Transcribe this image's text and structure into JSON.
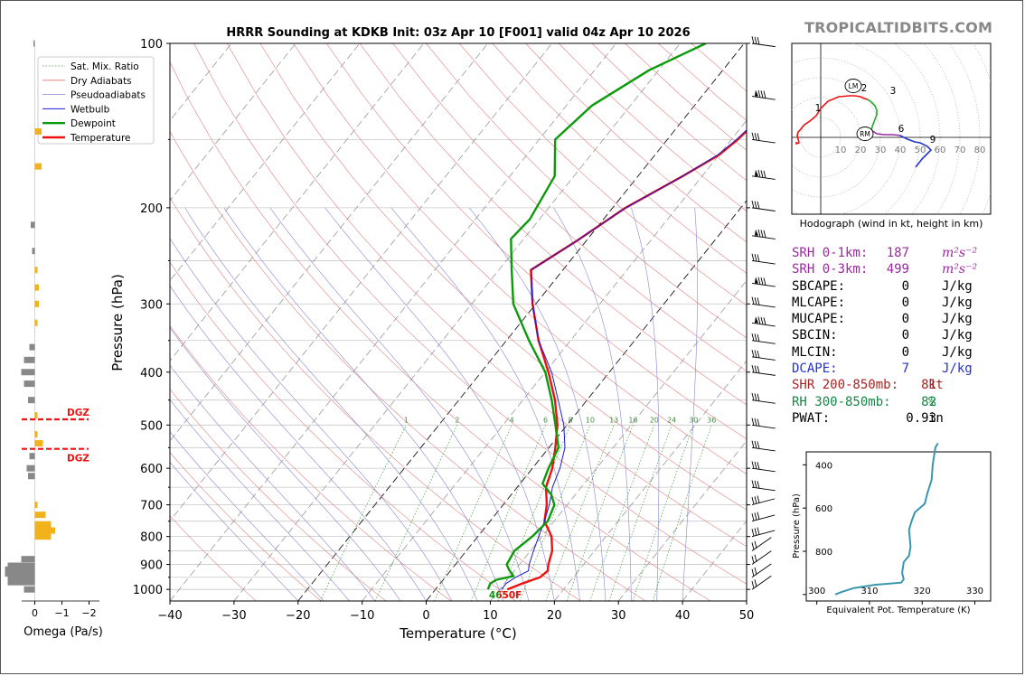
{
  "brand": "TROPICALTIDBITS.COM",
  "chart_data": {
    "type": "line",
    "title": "HRRR Sounding at KDKB Init: 03z Apr 10 [F001] valid 04z Apr 10 2026",
    "xlabel": "Temperature (°C)",
    "ylabel": "Pressure (hPa)",
    "xlim": [
      -40,
      50
    ],
    "ylim": [
      1050,
      100
    ],
    "yscale": "log",
    "x_ticks": [
      "−40",
      "−30",
      "−20",
      "−10",
      "0",
      "10",
      "20",
      "30",
      "40",
      "50"
    ],
    "y_ticks": [
      "100",
      "200",
      "300",
      "400",
      "500",
      "600",
      "700",
      "800",
      "900",
      "1000"
    ],
    "legend": [
      "Sat. Mix. Ratio",
      "Dry Adiabats",
      "Pseudoadiabats",
      "Wetbulb",
      "Dewpoint",
      "Temperature"
    ],
    "legend_colors": [
      "#3b9a3b",
      "#e07070",
      "#8888cc",
      "#1a1ad0",
      "#0a9a0a",
      "#ee1111"
    ],
    "mixing_ratio_labels": [
      "1",
      "2",
      "4",
      "6",
      "8",
      "10",
      "13",
      "16",
      "20",
      "24",
      "30",
      "36"
    ],
    "series": [
      {
        "name": "Temperature",
        "color": "#ee1111",
        "points": [
          [
            11.2,
            1000
          ],
          [
            12.8,
            975
          ],
          [
            14.8,
            950
          ],
          [
            15.2,
            925
          ],
          [
            14.5,
            900
          ],
          [
            13.4,
            850
          ],
          [
            11.5,
            800
          ],
          [
            8.5,
            750
          ],
          [
            6.8,
            700
          ],
          [
            4.5,
            650
          ],
          [
            3.1,
            600
          ],
          [
            1.0,
            550
          ],
          [
            -1.5,
            500
          ],
          [
            -5.0,
            450
          ],
          [
            -9.5,
            400
          ],
          [
            -15.0,
            350
          ],
          [
            -20.5,
            300
          ],
          [
            -25.0,
            260
          ],
          [
            -21.5,
            230
          ],
          [
            -18.0,
            200
          ],
          [
            -13.0,
            175
          ],
          [
            -10.0,
            160
          ],
          [
            -9.0,
            150
          ],
          [
            -8.0,
            135
          ],
          [
            -4.0,
            112
          ],
          [
            0.0,
            100
          ]
        ]
      },
      {
        "name": "Wetbulb",
        "color": "#1a1ad0",
        "points": [
          [
            10.3,
            1000
          ],
          [
            10.3,
            975
          ],
          [
            11.0,
            950
          ],
          [
            12.2,
            925
          ],
          [
            11.5,
            900
          ],
          [
            10.5,
            850
          ],
          [
            9.5,
            800
          ],
          [
            8.5,
            750
          ],
          [
            7.2,
            700
          ],
          [
            5.5,
            650
          ],
          [
            4.3,
            600
          ],
          [
            2.5,
            550
          ],
          [
            -0.5,
            500
          ],
          [
            -4.5,
            450
          ],
          [
            -9.0,
            400
          ],
          [
            -15.0,
            350
          ],
          [
            -20.5,
            300
          ],
          [
            -25.0,
            260
          ],
          [
            -21.5,
            230
          ],
          [
            -18.0,
            200
          ],
          [
            -13.0,
            175
          ],
          [
            -10.2,
            160
          ],
          [
            -9.2,
            150
          ],
          [
            -8.2,
            135
          ],
          [
            -4.2,
            112
          ],
          [
            0.0,
            100
          ]
        ]
      },
      {
        "name": "Dewpoint",
        "color": "#0a9a0a",
        "points": [
          [
            8.2,
            1000
          ],
          [
            7.8,
            975
          ],
          [
            8.3,
            960
          ],
          [
            10.5,
            945
          ],
          [
            9.0,
            920
          ],
          [
            8.0,
            900
          ],
          [
            7.5,
            850
          ],
          [
            8.5,
            800
          ],
          [
            9.0,
            750
          ],
          [
            8.0,
            700
          ],
          [
            6.2,
            670
          ],
          [
            3.5,
            640
          ],
          [
            2.5,
            600
          ],
          [
            1.5,
            550
          ],
          [
            -1.8,
            500
          ],
          [
            -5.5,
            450
          ],
          [
            -10.0,
            400
          ],
          [
            -16.5,
            350
          ],
          [
            -23.5,
            300
          ],
          [
            -28.0,
            260
          ],
          [
            -32.0,
            228
          ],
          [
            -31.5,
            210
          ],
          [
            -33.0,
            175
          ],
          [
            -37.5,
            150
          ],
          [
            -36.0,
            130
          ],
          [
            -31.5,
            112
          ],
          [
            -26.0,
            100
          ]
        ]
      }
    ],
    "annotations": [
      "4650F"
    ],
    "wind_barbs": "right column, 100–1000 hPa"
  },
  "omega": {
    "xlabel": "Omega (Pa/s)",
    "x_ticks": [
      "0",
      "−1",
      "−2"
    ],
    "dgz_label": "DGZ",
    "bars": [
      [
        1000,
        0.08
      ],
      [
        970,
        0.2
      ],
      [
        950,
        0.2
      ],
      [
        935,
        0.22
      ],
      [
        920,
        0.22
      ],
      [
        905,
        0.2
      ],
      [
        880,
        0.1
      ],
      [
        800,
        -0.12
      ],
      [
        780,
        -0.15
      ],
      [
        760,
        -0.12
      ],
      [
        730,
        -0.08
      ],
      [
        700,
        -0.02
      ],
      [
        620,
        0.05
      ],
      [
        600,
        0.06
      ],
      [
        570,
        0.04
      ],
      [
        540,
        -0.06
      ],
      [
        520,
        -0.02
      ],
      [
        480,
        -0.02
      ],
      [
        450,
        0.05
      ],
      [
        420,
        0.08
      ],
      [
        400,
        0.1
      ],
      [
        380,
        0.08
      ],
      [
        360,
        0.04
      ],
      [
        325,
        -0.02
      ],
      [
        300,
        -0.03
      ],
      [
        280,
        -0.03
      ],
      [
        260,
        -0.02
      ],
      [
        240,
        0.02
      ],
      [
        215,
        0.03
      ],
      [
        168,
        -0.05
      ],
      [
        145,
        -0.05
      ],
      [
        100,
        0.01
      ]
    ],
    "dgz_top": 490,
    "dgz_bottom": 555
  },
  "hodograph": {
    "caption": "Hodograph (wind in kt, height in km)",
    "ring_labels": [
      "10",
      "20",
      "30",
      "40",
      "50",
      "60",
      "70",
      "80"
    ],
    "height_labels": [
      "1",
      "2",
      "3",
      "6",
      "9"
    ],
    "markers": [
      "LM",
      "RM"
    ]
  },
  "indices": [
    {
      "label": "SRH 0-1km:",
      "value": "187",
      "unit": "m²s⁻²",
      "color": "#9a2aa0"
    },
    {
      "label": "SRH 0-3km:",
      "value": "499",
      "unit": "m²s⁻²",
      "color": "#9a2aa0"
    },
    {
      "label": "SBCAPE:",
      "value": "0",
      "unit": "J/kg",
      "color": "#000000"
    },
    {
      "label": "MLCAPE:",
      "value": "0",
      "unit": "J/kg",
      "color": "#000000"
    },
    {
      "label": "MUCAPE:",
      "value": "0",
      "unit": "J/kg",
      "color": "#000000"
    },
    {
      "label": "SBCIN:",
      "value": "0",
      "unit": "J/kg",
      "color": "#000000"
    },
    {
      "label": "MLCIN:",
      "value": "0",
      "unit": "J/kg",
      "color": "#000000"
    },
    {
      "label": "DCAPE:",
      "value": "7",
      "unit": "J/kg",
      "color": "#2233cc"
    },
    {
      "label": "SHR 200-850mb:",
      "value": "81",
      "unit": "kt",
      "color": "#aa2222"
    },
    {
      "label": "RH 300-850mb:",
      "value": "82",
      "unit": "%",
      "color": "#118844"
    },
    {
      "label": "PWAT:",
      "value": "0.93",
      "unit": "in",
      "color": "#000000"
    }
  ],
  "theta_e": {
    "xlabel": "Equivalent Pot. Temperature (K)",
    "ylabel": "Pressure (hPa)",
    "x_ticks": [
      "300",
      "310",
      "320",
      "330"
    ],
    "y_ticks": [
      "400",
      "600",
      "800"
    ],
    "color": "#3a96b0",
    "points": [
      [
        303.5,
        1000
      ],
      [
        304.5,
        990
      ],
      [
        307,
        970
      ],
      [
        311,
        955
      ],
      [
        316,
        945
      ],
      [
        316.5,
        930
      ],
      [
        316.2,
        900
      ],
      [
        316.5,
        850
      ],
      [
        317.5,
        820
      ],
      [
        317.8,
        780
      ],
      [
        317.5,
        700
      ],
      [
        318,
        660
      ],
      [
        318.6,
        620
      ],
      [
        320.5,
        580
      ],
      [
        321,
        530
      ],
      [
        321.8,
        470
      ],
      [
        322,
        400
      ],
      [
        322.5,
        320
      ],
      [
        323,
        300
      ]
    ]
  }
}
